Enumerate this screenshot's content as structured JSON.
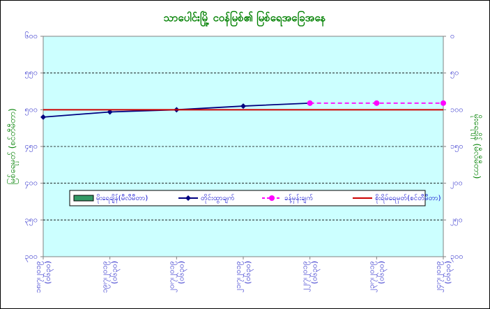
{
  "chart_data": {
    "type": "line",
    "title": "သာပေါင်းမြို့ ငဝန်မြစ်၏ မြစ်ရေအခြေအနေ",
    "ylabel": "မြစ်ရေမှတ် (စင်တီမီတာ)",
    "y2label": "မိုးရေချိန် (မီလီမီတာ)",
    "categories": [
      "၁၈၊၇၊၂၀၁၉ (၀၆၃၀)",
      "၁၉၊၇၊၂၀၁၉ (၀၆၃၀)",
      "၂၀၊၇၊၂၀၁၉ (၀၆၃၀)",
      "၂၁၊၇၊၂၀၁၉ (၀၆၃၀)",
      "၂၂၊၇၊၂၀၁၉ (၀၆၃၀)",
      "၂၃၊၇၊၂၀၁၉ (၀၆၃၀)",
      "၂၄၊၇၊၂၀၁၉ (၀၆၃၀)"
    ],
    "series": [
      {
        "name": "မိုးရေချိန်(မီလီမီတာ)",
        "type": "bar",
        "axis": "y2",
        "color": "#339966",
        "values": [
          0,
          0,
          0,
          0,
          0,
          0,
          0
        ]
      },
      {
        "name": "တိုင်းထွာချက်",
        "type": "line",
        "color": "#000080",
        "marker": "diamond",
        "dash": false,
        "values": [
          490,
          497,
          500,
          505,
          509,
          null,
          null
        ]
      },
      {
        "name": "ခန့်မှန်းချက်",
        "type": "line",
        "color": "#ff00ff",
        "marker": "circle",
        "dash": true,
        "values": [
          null,
          null,
          null,
          null,
          509,
          509,
          509
        ]
      },
      {
        "name": "စိုးရိမ်ရေမှတ်(စင်တီမီတာ)",
        "type": "line",
        "color": "#cc0000",
        "marker": "none",
        "dash": false,
        "values": [
          500,
          500,
          500,
          500,
          500,
          500,
          500
        ]
      }
    ],
    "ylim": [
      300,
      600
    ],
    "yticks": [
      {
        "value": 300,
        "label": "၃၀၀"
      },
      {
        "value": 350,
        "label": "၃၅၀"
      },
      {
        "value": 400,
        "label": "၄၀၀"
      },
      {
        "value": 450,
        "label": "၄၅၀"
      },
      {
        "value": 500,
        "label": "၅၀၀"
      },
      {
        "value": 550,
        "label": "၅၅၀"
      },
      {
        "value": 600,
        "label": "၆၀၀"
      }
    ],
    "y2lim": [
      300,
      0
    ],
    "y2ticks": [
      {
        "value": 0,
        "label": "၀"
      },
      {
        "value": 50,
        "label": "၅၀"
      },
      {
        "value": 100,
        "label": "၁၀၀"
      },
      {
        "value": 150,
        "label": "၁၅၀"
      },
      {
        "value": 200,
        "label": "၂၀၀"
      },
      {
        "value": 250,
        "label": "၂၅၀"
      },
      {
        "value": 300,
        "label": "၃၀၀"
      }
    ],
    "grid": true,
    "legend": "center"
  }
}
